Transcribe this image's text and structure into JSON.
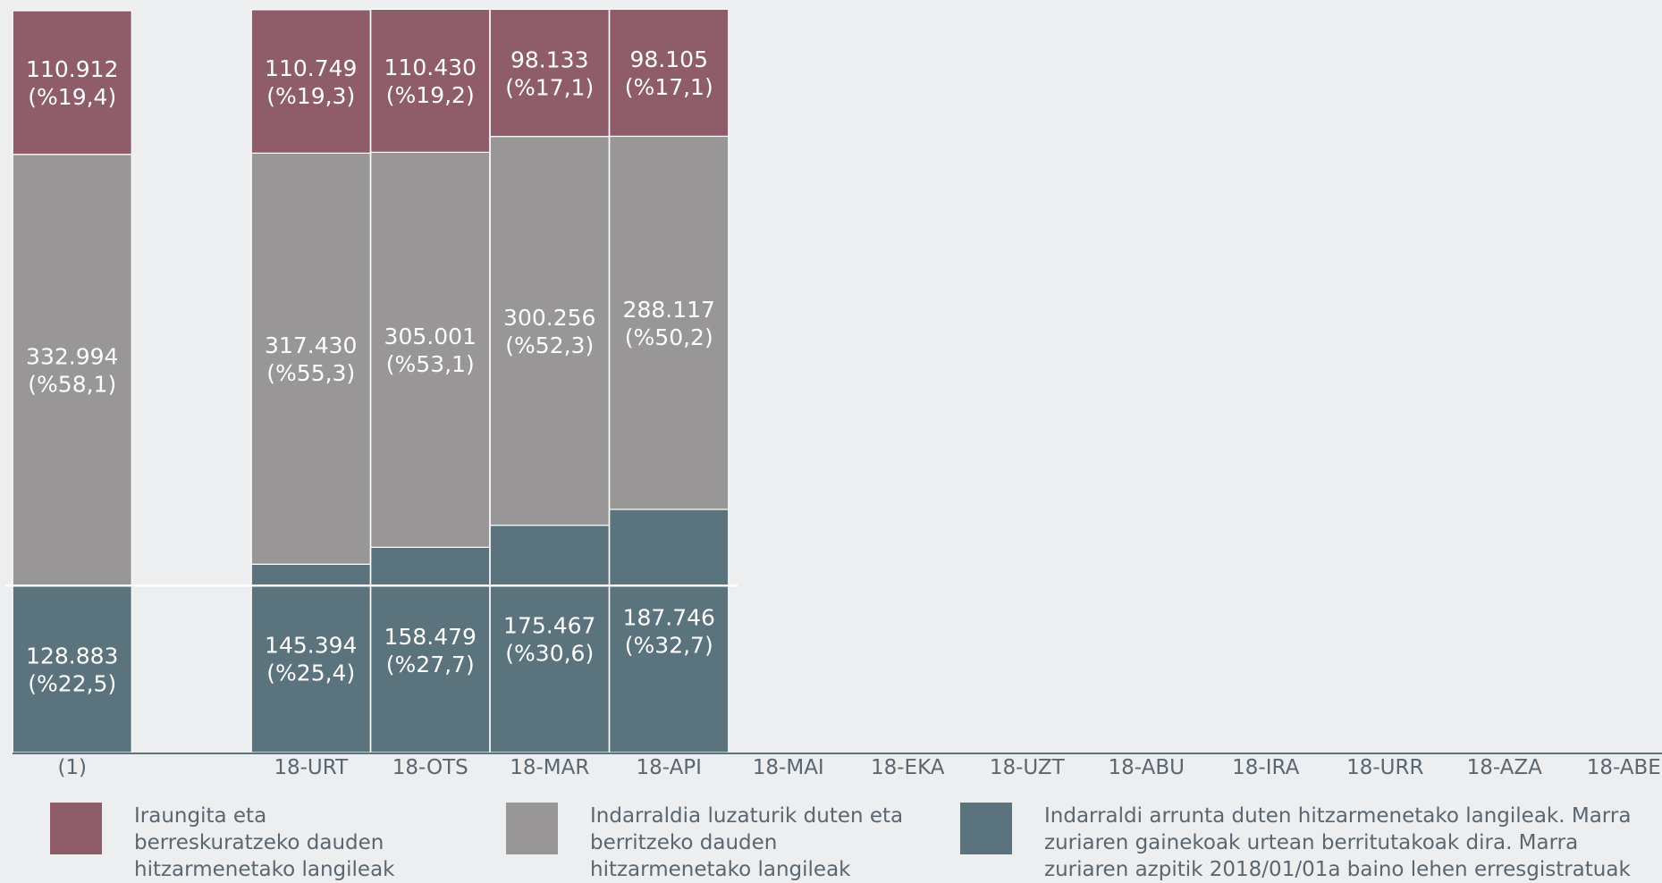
{
  "chart_data": {
    "type": "bar",
    "stacked": true,
    "categories": [
      "(1)",
      "",
      "18-URT",
      "18-OTS",
      "18-MAR",
      "18-API",
      "18-MAI",
      "18-EKA",
      "18-UZT",
      "18-ABU",
      "18-IRA",
      "18-URR",
      "18-AZA",
      "18-ABE"
    ],
    "series": [
      {
        "key": "arrunta",
        "color": "#5b737c",
        "values": [
          128883,
          null,
          145394,
          158479,
          175467,
          187746,
          null,
          null,
          null,
          null,
          null,
          null,
          null,
          null
        ],
        "labels": [
          [
            "128.883",
            "(%22,5)"
          ],
          null,
          [
            "145.394",
            "(%25,4)"
          ],
          [
            "158.479",
            "(%27,7)"
          ],
          [
            "175.467",
            "(%30,6)"
          ],
          [
            "187.746",
            "(%32,7)"
          ],
          null,
          null,
          null,
          null,
          null,
          null,
          null,
          null
        ]
      },
      {
        "key": "luzaturik",
        "color": "#989697",
        "values": [
          332994,
          null,
          317430,
          305001,
          300256,
          288117,
          null,
          null,
          null,
          null,
          null,
          null,
          null,
          null
        ],
        "labels": [
          [
            "332.994",
            "(%58,1)"
          ],
          null,
          [
            "317.430",
            "(%55,3)"
          ],
          [
            "305.001",
            "(%53,1)"
          ],
          [
            "300.256",
            "(%52,3)"
          ],
          [
            "288.117",
            "(%50,2)"
          ],
          null,
          null,
          null,
          null,
          null,
          null,
          null,
          null
        ]
      },
      {
        "key": "iraungita",
        "color": "#8f5d6a",
        "values": [
          110912,
          null,
          110749,
          110430,
          98133,
          98105,
          null,
          null,
          null,
          null,
          null,
          null,
          null,
          null
        ],
        "labels": [
          [
            "110.912",
            "(%19,4)"
          ],
          null,
          [
            "110.749",
            "(%19,3)"
          ],
          [
            "110.430",
            "(%19,2)"
          ],
          [
            "98.133",
            "(%17,1)"
          ],
          [
            "98.105",
            "(%17,1)"
          ],
          null,
          null,
          null,
          null,
          null,
          null,
          null,
          null
        ]
      }
    ],
    "reference_line_value": 128883,
    "ylim": [
      0,
      572789
    ],
    "grid": false
  },
  "legend": [
    {
      "color": "#8f5d6a",
      "text": "Iraungita eta\nberreskuratzeko dauden\nhitzarmenetako langileak"
    },
    {
      "color": "#989697",
      "text": "Indarraldia luzaturik duten eta\nberritzeko dauden\nhitzarmenetako langileak"
    },
    {
      "color": "#5b737c",
      "text": "Indarraldi arrunta duten hitzarmenetako langileak. Marra\nzuriaren gainekoak urtean berritutakoak dira. Marra\nzuriaren azpitik 2018/01/01a baino lehen erresgistratuak"
    }
  ]
}
